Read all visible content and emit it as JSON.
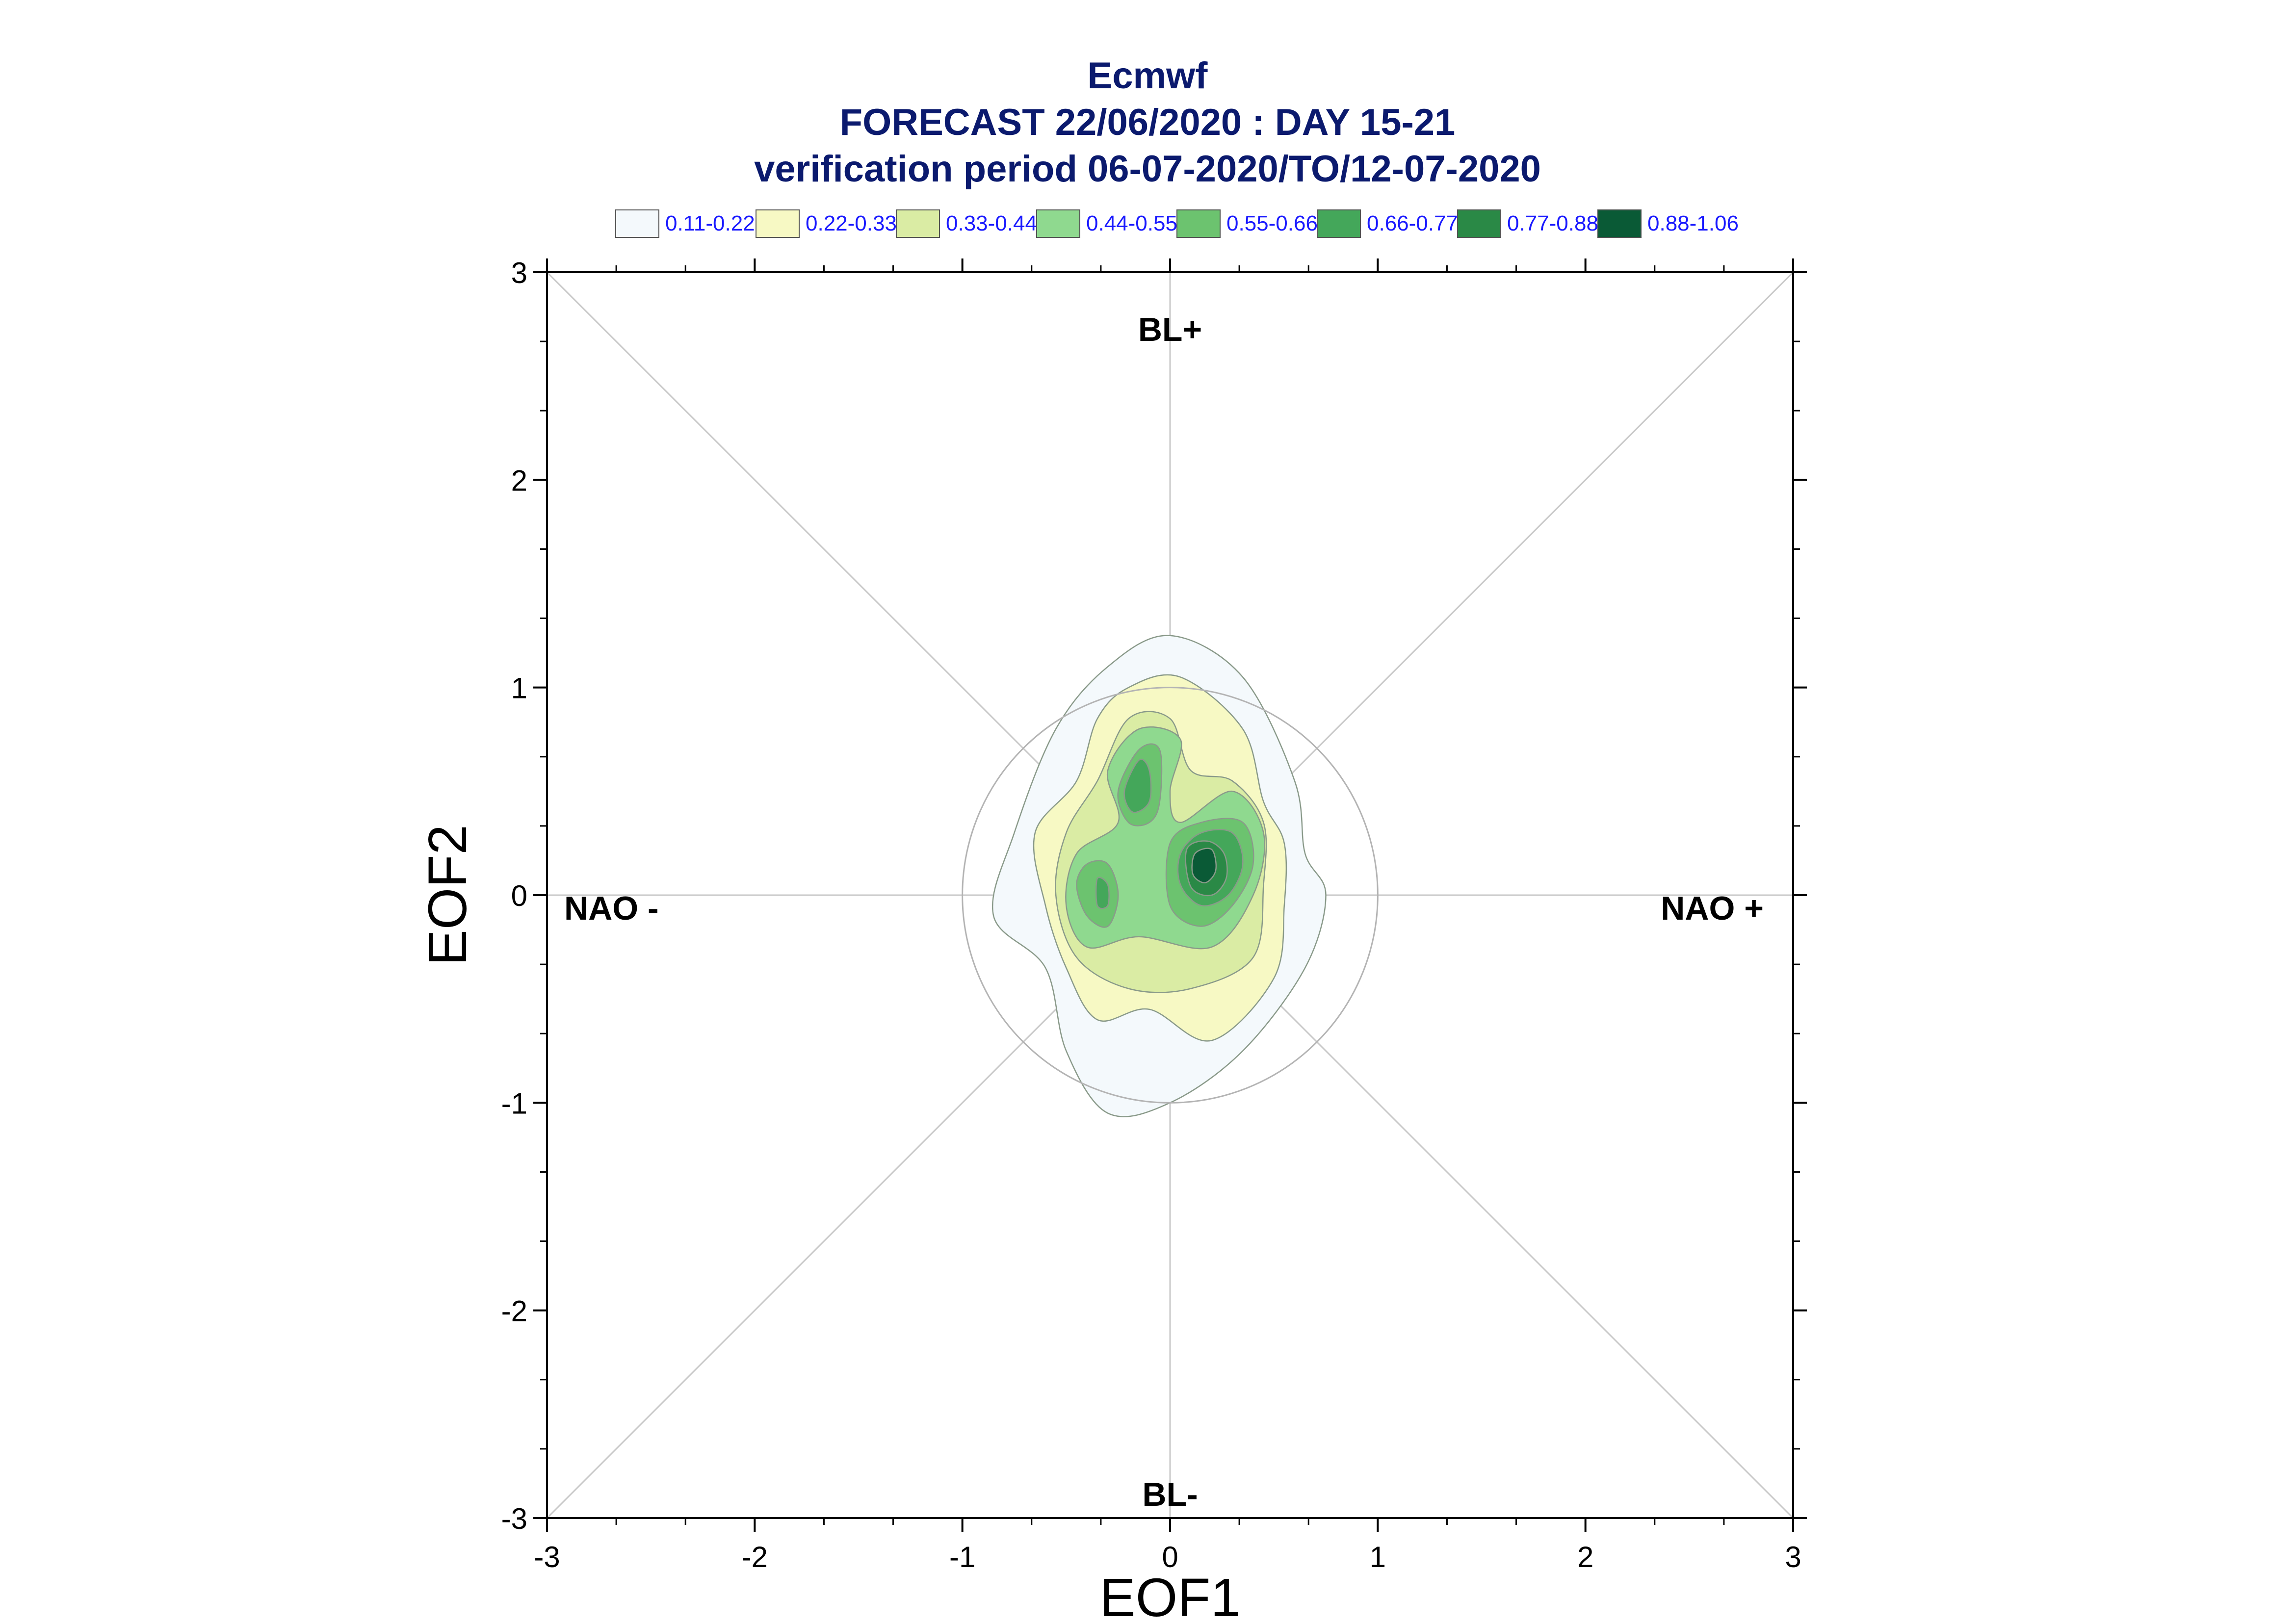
{
  "chart_data": {
    "type": "contour",
    "title": [
      "Ecmwf",
      "FORECAST 22/06/2020 : DAY 15-21",
      "verification period 06-07-2020/TO/12-07-2020"
    ],
    "xlabel": "EOF1",
    "ylabel": "EOF2",
    "xlim": [
      -3,
      3
    ],
    "ylim": [
      -3,
      3
    ],
    "xticks": [
      -3,
      -2,
      -1,
      0,
      1,
      2,
      3
    ],
    "yticks": [
      -3,
      -2,
      -1,
      0,
      1,
      2,
      3
    ],
    "tick_labels": [
      "-3",
      "-2",
      "-1",
      "0",
      "1",
      "2",
      "3"
    ],
    "reference_circle_radius": 1,
    "regime_labels": {
      "top": "BL+",
      "bottom": "BL-",
      "left": "NAO -",
      "right": "NAO +"
    },
    "legend": [
      {
        "label": "0.11-0.22",
        "color": "#f4f9fc"
      },
      {
        "label": "0.22-0.33",
        "color": "#f7f9c4"
      },
      {
        "label": "0.33-0.44",
        "color": "#daeca4"
      },
      {
        "label": "0.44-0.55",
        "color": "#8fd98f"
      },
      {
        "label": "0.55-0.66",
        "color": "#6cc36f"
      },
      {
        "label": "0.66-0.77",
        "color": "#44a75a"
      },
      {
        "label": "0.77-0.88",
        "color": "#2a8946"
      },
      {
        "label": "0.88-1.06",
        "color": "#0a5a36"
      }
    ],
    "contours": [
      {
        "level": "0.11-0.22",
        "points": [
          [
            -0.3,
            1.1
          ],
          [
            0.0,
            1.25
          ],
          [
            0.35,
            1.05
          ],
          [
            0.6,
            0.55
          ],
          [
            0.65,
            0.2
          ],
          [
            0.75,
            0.0
          ],
          [
            0.65,
            -0.35
          ],
          [
            0.35,
            -0.75
          ],
          [
            0.0,
            -1.0
          ],
          [
            -0.3,
            -1.05
          ],
          [
            -0.5,
            -0.75
          ],
          [
            -0.6,
            -0.35
          ],
          [
            -0.85,
            -0.1
          ],
          [
            -0.75,
            0.3
          ],
          [
            -0.55,
            0.8
          ]
        ]
      },
      {
        "level": "0.22-0.33",
        "points": [
          [
            -0.2,
            1.0
          ],
          [
            0.05,
            1.05
          ],
          [
            0.35,
            0.8
          ],
          [
            0.45,
            0.45
          ],
          [
            0.55,
            0.25
          ],
          [
            0.55,
            -0.05
          ],
          [
            0.5,
            -0.4
          ],
          [
            0.2,
            -0.7
          ],
          [
            -0.1,
            -0.55
          ],
          [
            -0.35,
            -0.6
          ],
          [
            -0.5,
            -0.35
          ],
          [
            -0.6,
            -0.05
          ],
          [
            -0.65,
            0.3
          ],
          [
            -0.45,
            0.55
          ],
          [
            -0.35,
            0.85
          ]
        ]
      },
      {
        "level": "0.33-0.44",
        "points": [
          [
            -0.2,
            0.85
          ],
          [
            0.0,
            0.85
          ],
          [
            0.1,
            0.6
          ],
          [
            0.3,
            0.55
          ],
          [
            0.45,
            0.35
          ],
          [
            0.45,
            0.05
          ],
          [
            0.4,
            -0.3
          ],
          [
            0.1,
            -0.45
          ],
          [
            -0.2,
            -0.45
          ],
          [
            -0.45,
            -0.3
          ],
          [
            -0.55,
            0.0
          ],
          [
            -0.5,
            0.3
          ],
          [
            -0.35,
            0.55
          ]
        ]
      },
      {
        "level": "0.44-0.55",
        "points": [
          [
            -0.15,
            0.8
          ],
          [
            0.05,
            0.75
          ],
          [
            0.0,
            0.5
          ],
          [
            0.05,
            0.35
          ],
          [
            0.3,
            0.5
          ],
          [
            0.45,
            0.3
          ],
          [
            0.4,
            0.0
          ],
          [
            0.2,
            -0.25
          ],
          [
            -0.15,
            -0.2
          ],
          [
            -0.4,
            -0.25
          ],
          [
            -0.5,
            -0.05
          ],
          [
            -0.45,
            0.2
          ],
          [
            -0.25,
            0.35
          ],
          [
            -0.3,
            0.6
          ]
        ]
      },
      {
        "level": "0.55-0.66",
        "points": [
          [
            -0.15,
            0.7
          ],
          [
            -0.05,
            0.7
          ],
          [
            -0.05,
            0.45
          ],
          [
            -0.1,
            0.35
          ],
          [
            -0.2,
            0.35
          ],
          [
            -0.25,
            0.5
          ]
        ]
      },
      {
        "level": "0.55-0.66",
        "points": [
          [
            0.0,
            0.25
          ],
          [
            0.15,
            0.35
          ],
          [
            0.35,
            0.35
          ],
          [
            0.4,
            0.15
          ],
          [
            0.3,
            -0.05
          ],
          [
            0.15,
            -0.15
          ],
          [
            0.0,
            -0.05
          ]
        ]
      },
      {
        "level": "0.55-0.66",
        "points": [
          [
            -0.4,
            0.15
          ],
          [
            -0.3,
            0.15
          ],
          [
            -0.25,
            0.0
          ],
          [
            -0.3,
            -0.15
          ],
          [
            -0.4,
            -0.1
          ],
          [
            -0.45,
            0.05
          ]
        ]
      },
      {
        "level": "0.66-0.77",
        "points": [
          [
            -0.15,
            0.65
          ],
          [
            -0.1,
            0.6
          ],
          [
            -0.1,
            0.45
          ],
          [
            -0.18,
            0.4
          ],
          [
            -0.22,
            0.5
          ]
        ]
      },
      {
        "level": "0.66-0.77",
        "points": [
          [
            0.05,
            0.2
          ],
          [
            0.15,
            0.3
          ],
          [
            0.3,
            0.3
          ],
          [
            0.35,
            0.15
          ],
          [
            0.28,
            0.0
          ],
          [
            0.15,
            -0.05
          ],
          [
            0.05,
            0.05
          ]
        ]
      },
      {
        "level": "0.66-0.77",
        "points": [
          [
            -0.35,
            0.08
          ],
          [
            -0.3,
            0.05
          ],
          [
            -0.3,
            -0.05
          ],
          [
            -0.35,
            -0.05
          ]
        ]
      },
      {
        "level": "0.77-0.88",
        "points": [
          [
            0.08,
            0.22
          ],
          [
            0.18,
            0.26
          ],
          [
            0.26,
            0.2
          ],
          [
            0.27,
            0.08
          ],
          [
            0.2,
            0.0
          ],
          [
            0.1,
            0.04
          ]
        ]
      },
      {
        "level": "0.88-1.06",
        "points": [
          [
            0.12,
            0.2
          ],
          [
            0.2,
            0.22
          ],
          [
            0.22,
            0.12
          ],
          [
            0.17,
            0.06
          ],
          [
            0.11,
            0.1
          ]
        ]
      }
    ]
  }
}
